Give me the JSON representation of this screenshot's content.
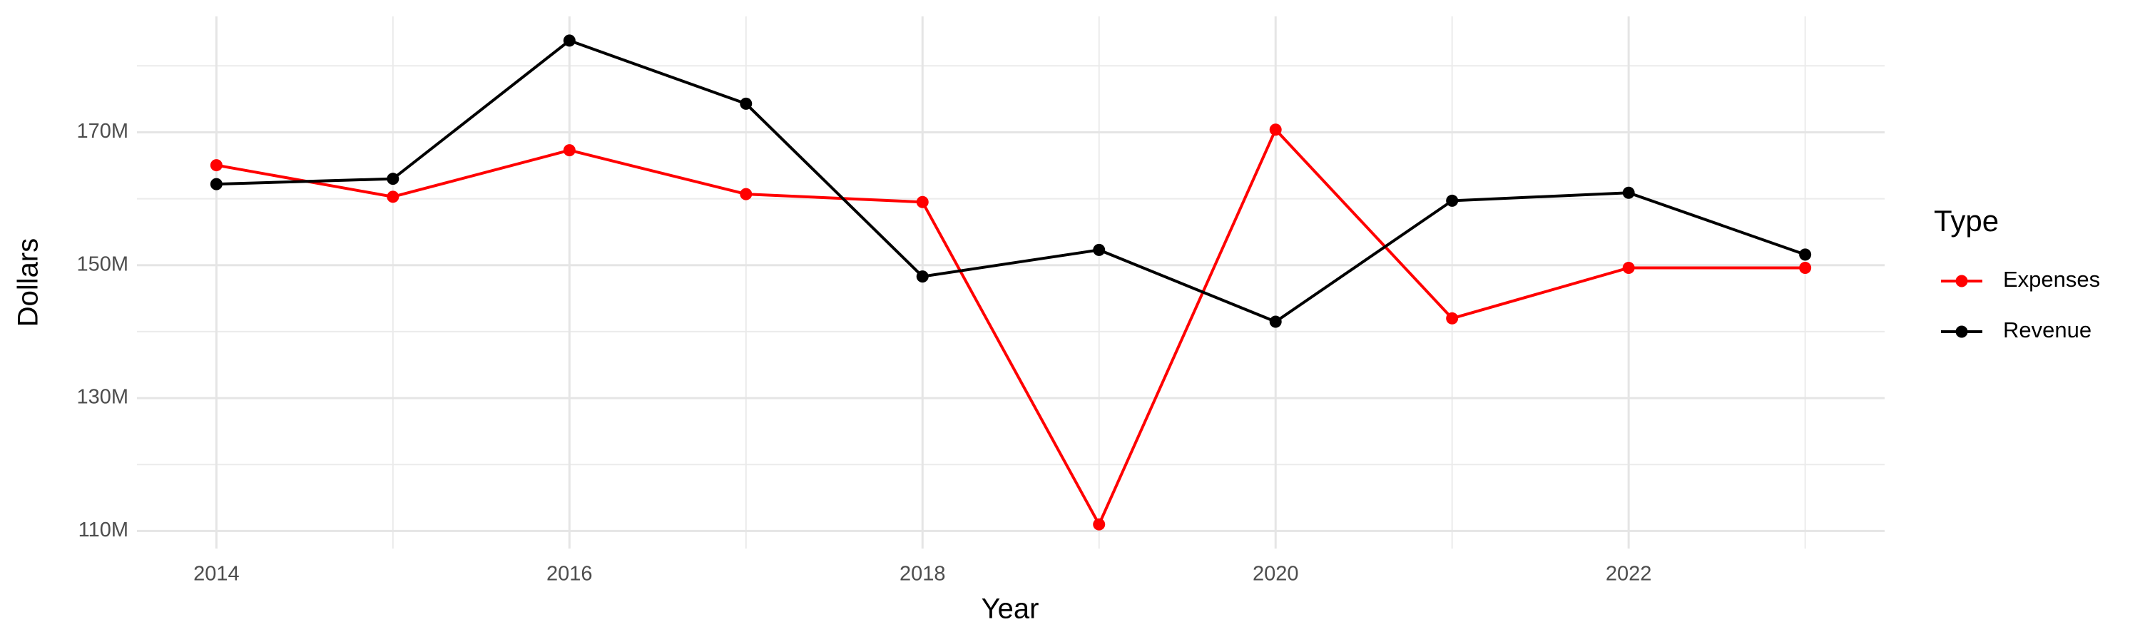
{
  "chart_data": {
    "type": "line",
    "x_label": "Year",
    "y_label": "Dollars",
    "x": [
      2014,
      2015,
      2016,
      2017,
      2018,
      2019,
      2020,
      2021,
      2022,
      2023
    ],
    "series": [
      {
        "name": "Expenses",
        "color": "#ff0000",
        "values": [
          165050000,
          160300000,
          167300000,
          160700000,
          159500000,
          111000000,
          170400000,
          142000000,
          149600000,
          149600000
        ]
      },
      {
        "name": "Revenue",
        "color": "#000000",
        "values": [
          162200000,
          163000000,
          183800000,
          174300000,
          148300000,
          152300000,
          141500000,
          159700000,
          160900000,
          151600000
        ]
      }
    ],
    "xlim": [
      2013.55,
      2023.45
    ],
    "xticks": [
      2014,
      2016,
      2018,
      2020,
      2022
    ],
    "ylim": [
      107360000,
      187440000
    ],
    "yticks": [
      {
        "value": 110000000,
        "label": "110M"
      },
      {
        "value": 130000000,
        "label": "130M"
      },
      {
        "value": 150000000,
        "label": "150M"
      },
      {
        "value": 170000000,
        "label": "170M"
      }
    ],
    "grid": true,
    "legend_title": "Type",
    "legend_position": "right"
  }
}
